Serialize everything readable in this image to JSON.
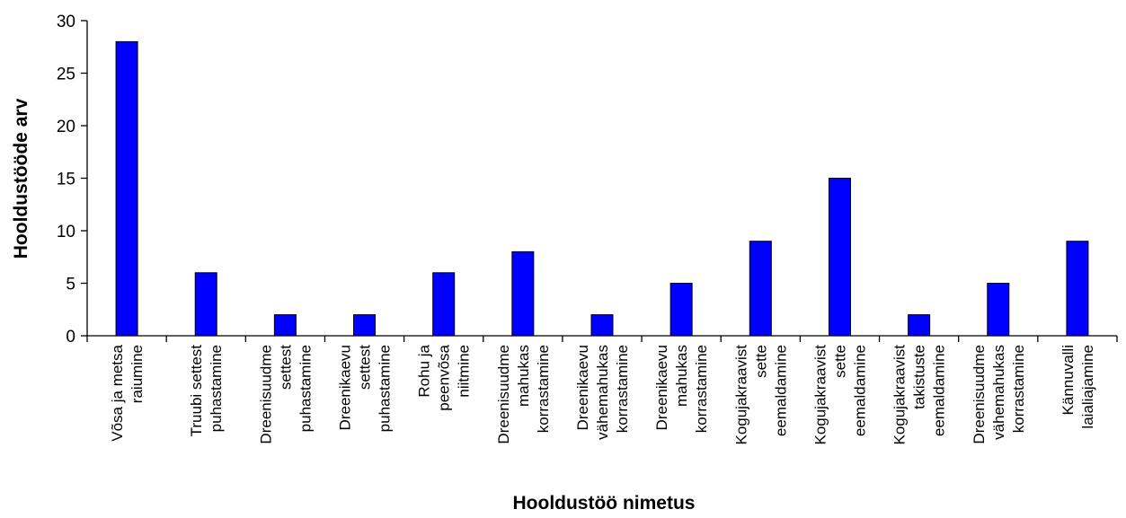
{
  "chart_data": {
    "type": "bar",
    "xlabel": "Hooldustöö nimetus",
    "ylabel": "Hooldustööde arv",
    "ylim": [
      0,
      30
    ],
    "yticks": [
      0,
      5,
      10,
      15,
      20,
      25,
      30
    ],
    "grid": false,
    "bar_color": "#0000ff",
    "categories": [
      [
        "Võsa ja metsa",
        "raiumine"
      ],
      [
        "Truubi settest",
        "puhastamine"
      ],
      [
        "Dreenisuudme",
        "settest",
        "puhastamine"
      ],
      [
        "Dreenikaevu",
        "settest",
        "puhastamine"
      ],
      [
        "Rohu ja",
        "peenvõsa",
        "niitmine"
      ],
      [
        "Dreenisuudme",
        "mahukas",
        "korrastamine"
      ],
      [
        "Dreenikaevu",
        "vähemahukas",
        "korrastamine"
      ],
      [
        "Dreenikaevu",
        "mahukas",
        "korrastamine"
      ],
      [
        "Kogujakraavist",
        "sette",
        "eemaldamine"
      ],
      [
        "Kogujakraavist",
        "sette",
        "eemaldamine"
      ],
      [
        "Kogujakraavist",
        "takistuste",
        "eemaldamine"
      ],
      [
        "Dreenisuudme",
        "vähemahukas",
        "korrastamine"
      ],
      [
        "Kännuvalli",
        "laialiajamine"
      ]
    ],
    "values": [
      28,
      6,
      2,
      2,
      6,
      8,
      2,
      5,
      9,
      15,
      2,
      5,
      9
    ]
  }
}
